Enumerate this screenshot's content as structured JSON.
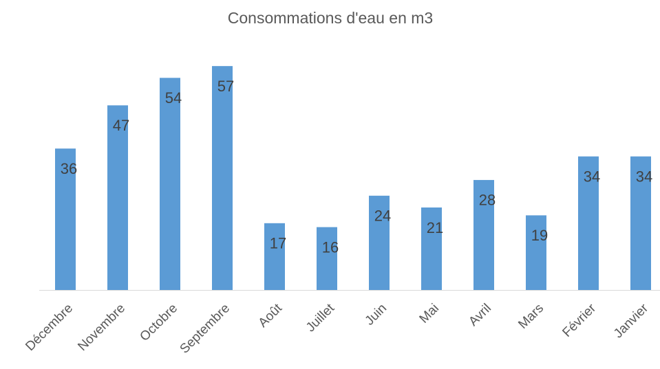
{
  "chart_data": {
    "type": "bar",
    "title": "Consommations d'eau en m3",
    "categories": [
      "Décembre",
      "Novembre",
      "Octobre",
      "Septembre",
      "Août",
      "Juillet",
      "Juin",
      "Mai",
      "Avril",
      "Mars",
      "Février",
      "Janvier"
    ],
    "values": [
      36,
      47,
      54,
      57,
      17,
      16,
      24,
      21,
      28,
      19,
      34,
      34
    ],
    "color": "#5b9bd5",
    "ylim": [
      0,
      60
    ]
  }
}
